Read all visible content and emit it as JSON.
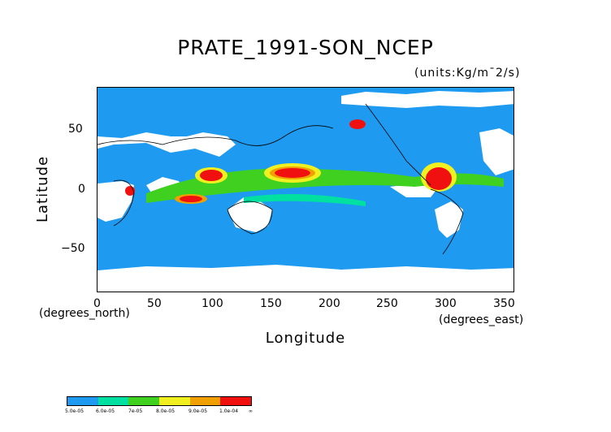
{
  "title": "PRATE_1991-SON_NCEP",
  "units": "(units:Kg/m¯2/s)",
  "axes": {
    "xlabel": "Longitude",
    "ylabel": "Latitude",
    "x_unit_note": "(degrees_east)",
    "y_unit_note": "(degrees_north)",
    "x_ticks": [
      "0",
      "50",
      "100",
      "150",
      "200",
      "250",
      "300",
      "350"
    ],
    "y_ticks": [
      "50",
      "0",
      "−50"
    ]
  },
  "colorbar": {
    "labels": [
      "5.0e-05",
      "6.0e-05",
      "7e-05",
      "8.0e-05",
      "9.0e-05",
      "1.0e-04",
      "∞"
    ],
    "colors": [
      "#1e9bf0",
      "#00e0a0",
      "#40d020",
      "#f0f020",
      "#f0a000",
      "#f01010"
    ]
  },
  "map_data": {
    "type": "global precipitation rate map",
    "lon_range": [
      0,
      360
    ],
    "lat_range": [
      -90,
      90
    ],
    "colors": {
      "ocean": "#1e9bf0",
      "missing": "#ffffff",
      "coast": "#000000"
    }
  }
}
